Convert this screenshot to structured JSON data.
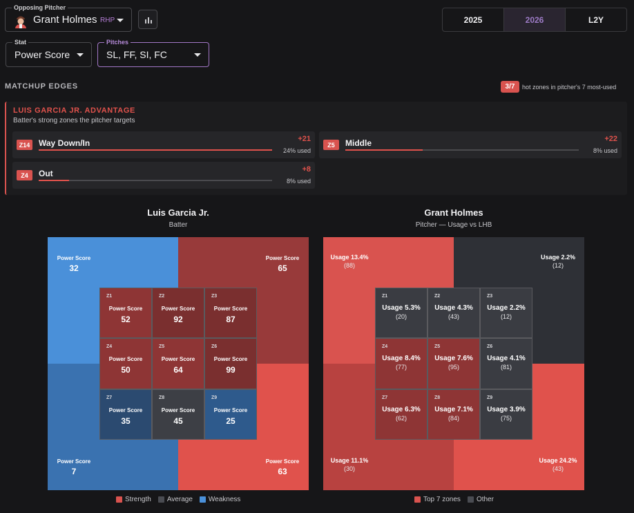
{
  "header": {
    "pitcher_legend": "Opposing Pitcher",
    "pitcher_name": "Grant Holmes",
    "pitcher_hand": "RHP",
    "seasons": [
      "2025",
      "2026",
      "L2Y"
    ],
    "active_season": "2026"
  },
  "filters": {
    "stat_legend": "Stat",
    "stat_value": "Power Score",
    "pitches_legend": "Pitches",
    "pitches_value": "SL, FF, SI, FC"
  },
  "matchup": {
    "title": "MATCHUP EDGES",
    "hot_badge": "3/7",
    "hot_text": "hot zones in pitcher's 7 most-used",
    "adv_title": "LUIS GARCIA JR. ADVANTAGE",
    "adv_sub": "Batter's strong zones the pitcher targets",
    "edges": [
      {
        "zone": "Z14",
        "label": "Way Down/In",
        "value": "+21",
        "used": "24% used",
        "fill": 1.0
      },
      {
        "zone": "Z5",
        "label": "Middle",
        "value": "+22",
        "used": "8% used",
        "fill": 0.33
      },
      {
        "zone": "Z4",
        "label": "Out",
        "value": "+8",
        "used": "8% used",
        "fill": 0.13
      }
    ]
  },
  "batter": {
    "title": "Luis Garcia Jr.",
    "subtitle": "Batter",
    "stat_label": "Power Score",
    "outer": {
      "tl": "32",
      "tr": "65",
      "bl": "7",
      "br": "63"
    },
    "zones": [
      {
        "id": "Z1",
        "value": "52"
      },
      {
        "id": "Z2",
        "value": "92"
      },
      {
        "id": "Z3",
        "value": "87"
      },
      {
        "id": "Z4",
        "value": "50"
      },
      {
        "id": "Z5",
        "value": "64"
      },
      {
        "id": "Z6",
        "value": "99"
      },
      {
        "id": "Z7",
        "value": "35"
      },
      {
        "id": "Z8",
        "value": "45"
      },
      {
        "id": "Z9",
        "value": "25"
      }
    ],
    "legend": [
      "Strength",
      "Average",
      "Weakness"
    ]
  },
  "pitcher": {
    "title": "Grant Holmes",
    "subtitle": "Pitcher — Usage vs LHB",
    "outer": {
      "tl": {
        "usage": "Usage 13.4%",
        "count": "(88)"
      },
      "tr": {
        "usage": "Usage 2.2%",
        "count": "(12)"
      },
      "bl": {
        "usage": "Usage 11.1%",
        "count": "(30)"
      },
      "br": {
        "usage": "Usage 24.2%",
        "count": "(43)"
      }
    },
    "zones": [
      {
        "id": "Z1",
        "usage": "Usage 5.3%",
        "count": "(20)"
      },
      {
        "id": "Z2",
        "usage": "Usage 4.3%",
        "count": "(43)"
      },
      {
        "id": "Z3",
        "usage": "Usage 2.2%",
        "count": "(12)"
      },
      {
        "id": "Z4",
        "usage": "Usage 8.4%",
        "count": "(77)"
      },
      {
        "id": "Z5",
        "usage": "Usage 7.6%",
        "count": "(95)"
      },
      {
        "id": "Z6",
        "usage": "Usage 4.1%",
        "count": "(81)"
      },
      {
        "id": "Z7",
        "usage": "Usage 6.3%",
        "count": "(62)"
      },
      {
        "id": "Z8",
        "usage": "Usage 7.1%",
        "count": "(84)"
      },
      {
        "id": "Z9",
        "usage": "Usage 3.9%",
        "count": "(75)"
      }
    ],
    "legend": [
      "Top 7 zones",
      "Other"
    ]
  },
  "colors": {
    "accent": "#a277c7",
    "strength": "#d9534f",
    "average": "#3d3f45",
    "weakness": "#4a90d9"
  }
}
